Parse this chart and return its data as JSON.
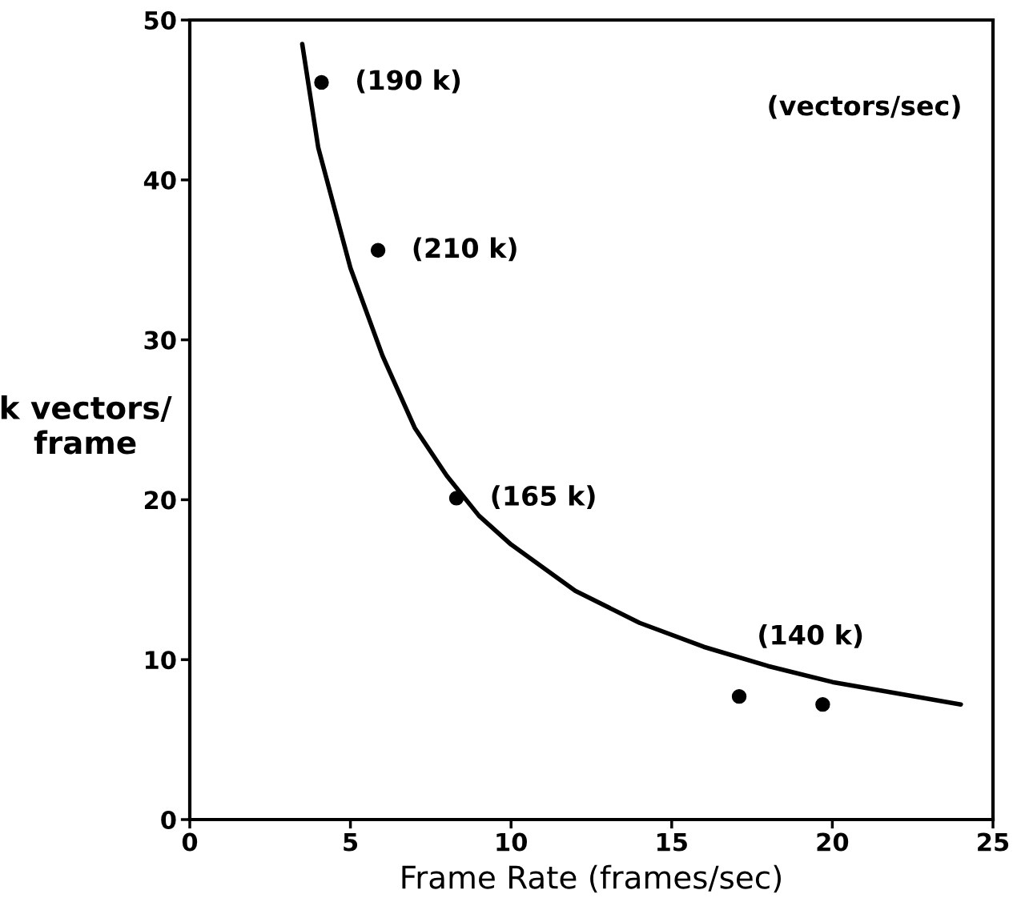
{
  "chart_data": {
    "type": "scatter",
    "xlabel": "Frame Rate (frames/sec)",
    "ylabel": "k vectors/\nframe",
    "xlim": [
      0,
      25
    ],
    "ylim": [
      0,
      50
    ],
    "xticks": [
      0,
      5,
      10,
      15,
      20,
      25
    ],
    "yticks": [
      0,
      10,
      20,
      30,
      40,
      50
    ],
    "grid": false,
    "series": [
      {
        "marker": "circle",
        "color": "#000000",
        "x": [
          4.1,
          5.86,
          8.3,
          17.1,
          19.7
        ],
        "values": [
          46.1,
          35.6,
          20.1,
          7.7,
          7.2
        ]
      },
      {
        "type": "line",
        "marker": "none",
        "color": "#000000",
        "line_style": "solid",
        "x": [
          3.5,
          4,
          5,
          6,
          7,
          8,
          9,
          10,
          12,
          14,
          16,
          18,
          20,
          22,
          24
        ],
        "values": [
          48.5,
          42,
          34.5,
          29,
          24.5,
          21.5,
          19,
          17.2,
          14.3,
          12.3,
          10.8,
          9.6,
          8.6,
          7.9,
          7.2
        ]
      }
    ],
    "annotations": [
      {
        "text": "(190 k)",
        "x": 4.1,
        "y": 46.1
      },
      {
        "text": "(210 k)",
        "x": 5.86,
        "y": 35.6
      },
      {
        "text": "(165 k)",
        "x": 8.3,
        "y": 20.1
      },
      {
        "text": "(140 k)",
        "x": 18,
        "y": 9.6
      },
      "(vectors/sec)"
    ]
  }
}
